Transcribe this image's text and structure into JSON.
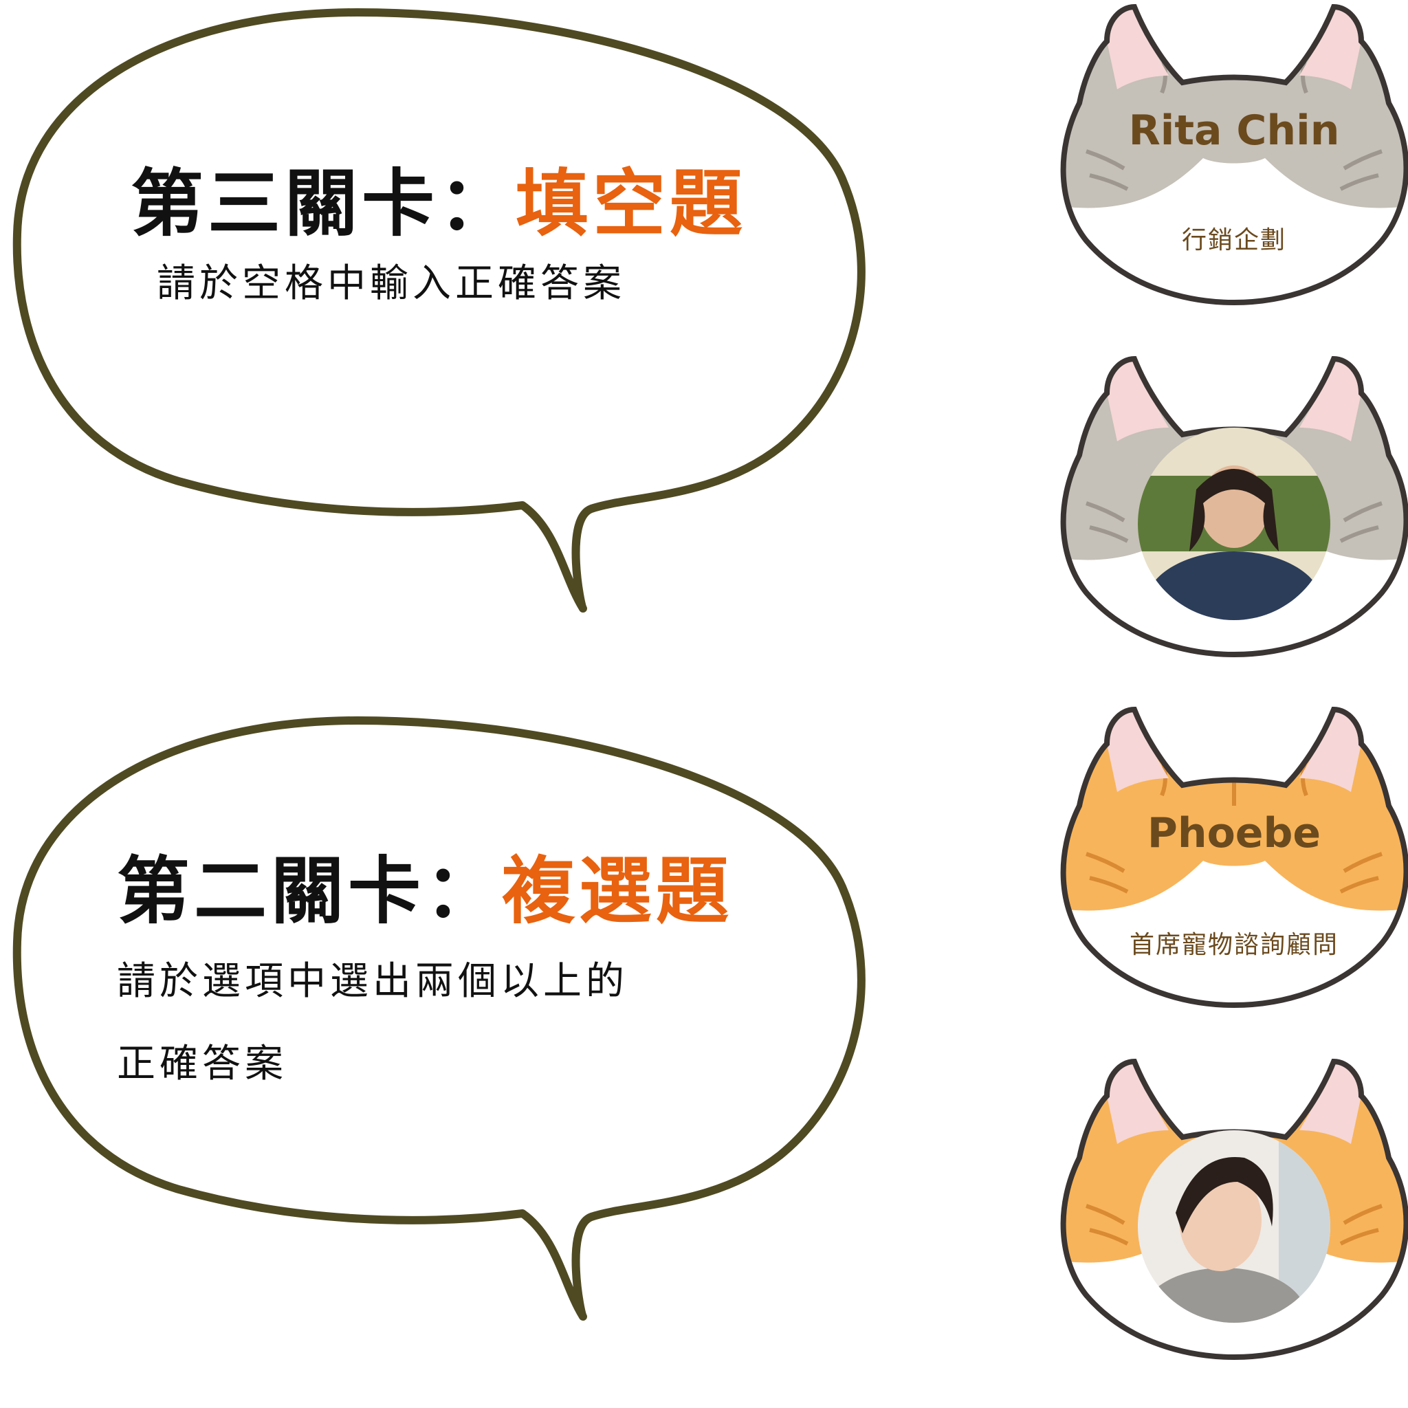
{
  "bubbles": [
    {
      "title_prefix": "第三關卡：",
      "title_accent": "填空題",
      "lines": [
        "請於空格中輸入正確答案"
      ]
    },
    {
      "title_prefix": "第二關卡：",
      "title_accent": "複選題",
      "lines": [
        "請於選項中選出兩個以上的",
        "正確答案"
      ]
    }
  ],
  "cards": [
    {
      "name": "Rita Chin",
      "role": "行銷企劃",
      "fur": "gray"
    },
    {
      "name": "",
      "role": "",
      "fur": "gray",
      "photo": "avatar-photo"
    },
    {
      "name": "Phoebe",
      "role": "首席寵物諮詢顧問",
      "fur": "orange"
    },
    {
      "name": "",
      "role": "",
      "fur": "orange",
      "photo": "avatar-photo"
    }
  ],
  "colors": {
    "bubble_outline": "#4f4a22",
    "accent": "#e8620f",
    "gray_fur": "#c5c0b8",
    "orange_fur": "#f8b45a",
    "ear_inner": "#f6d6d6",
    "cat_outline": "#3a3433",
    "name_text": "#6b4a1e"
  }
}
